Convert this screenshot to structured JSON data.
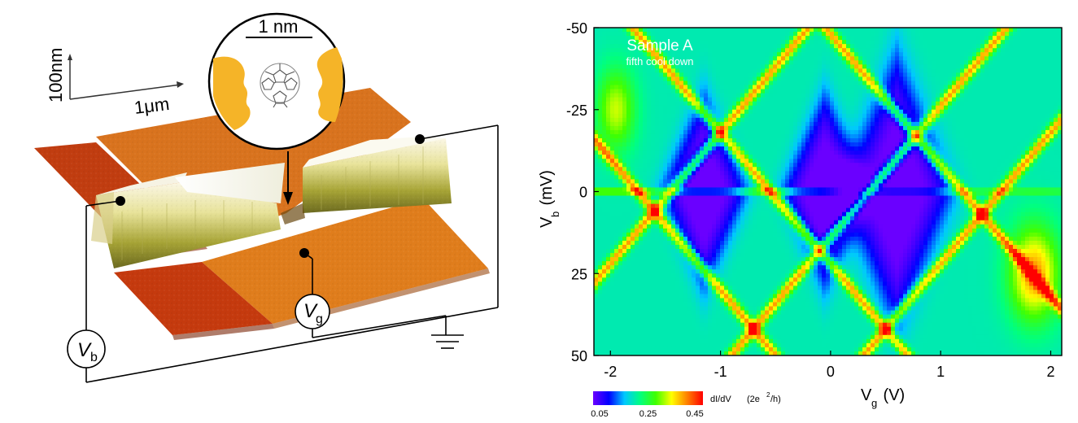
{
  "panel_left": {
    "scale_vertical": "100nm",
    "scale_horizontal": "1μm",
    "inset_scale": "1 nm",
    "vb_symbol": "V",
    "vb_subscript": "b",
    "vg_symbol": "V",
    "vg_subscript": "g"
  },
  "chart_data": {
    "type": "heatmap",
    "annotation_title": "Sample A",
    "annotation_subtitle": "fifth cool down",
    "xlabel_symbol": "V",
    "xlabel_sub": "g",
    "xlabel_unit": " (V)",
    "ylabel_symbol": "V",
    "ylabel_sub": "b",
    "ylabel_unit": " (mV)",
    "xlim": [
      -2.15,
      2.1
    ],
    "ylim": [
      -50,
      50
    ],
    "y_inverted": true,
    "x_ticks": [
      -2,
      -1,
      0,
      1,
      2
    ],
    "x_tick_labels": [
      "-2",
      "-1",
      "0",
      "1",
      "2"
    ],
    "y_ticks": [
      -50,
      -25,
      0,
      25,
      50
    ],
    "y_tick_labels": [
      "-50",
      "-25",
      "0",
      "25",
      "50"
    ],
    "colorbar": {
      "label": "dI/dV",
      "unit_prefix": "(2e",
      "unit_sup": "2",
      "unit_suffix": "/h)",
      "range": [
        0.05,
        0.45
      ],
      "tick_values": [
        0.05,
        0.25,
        0.45
      ],
      "tick_labels": [
        "0.05",
        "0.25",
        "0.45"
      ],
      "colors": [
        "#6a00ff",
        "#0000ff",
        "#00c8ff",
        "#00ff80",
        "#40ff00",
        "#ffff00",
        "#ff8000",
        "#ff0000"
      ]
    },
    "features": {
      "diamond_gates": [
        -1.15,
        -0.05,
        0.6
      ],
      "line_resonance_bias": 0,
      "background_level": 0.2
    }
  }
}
